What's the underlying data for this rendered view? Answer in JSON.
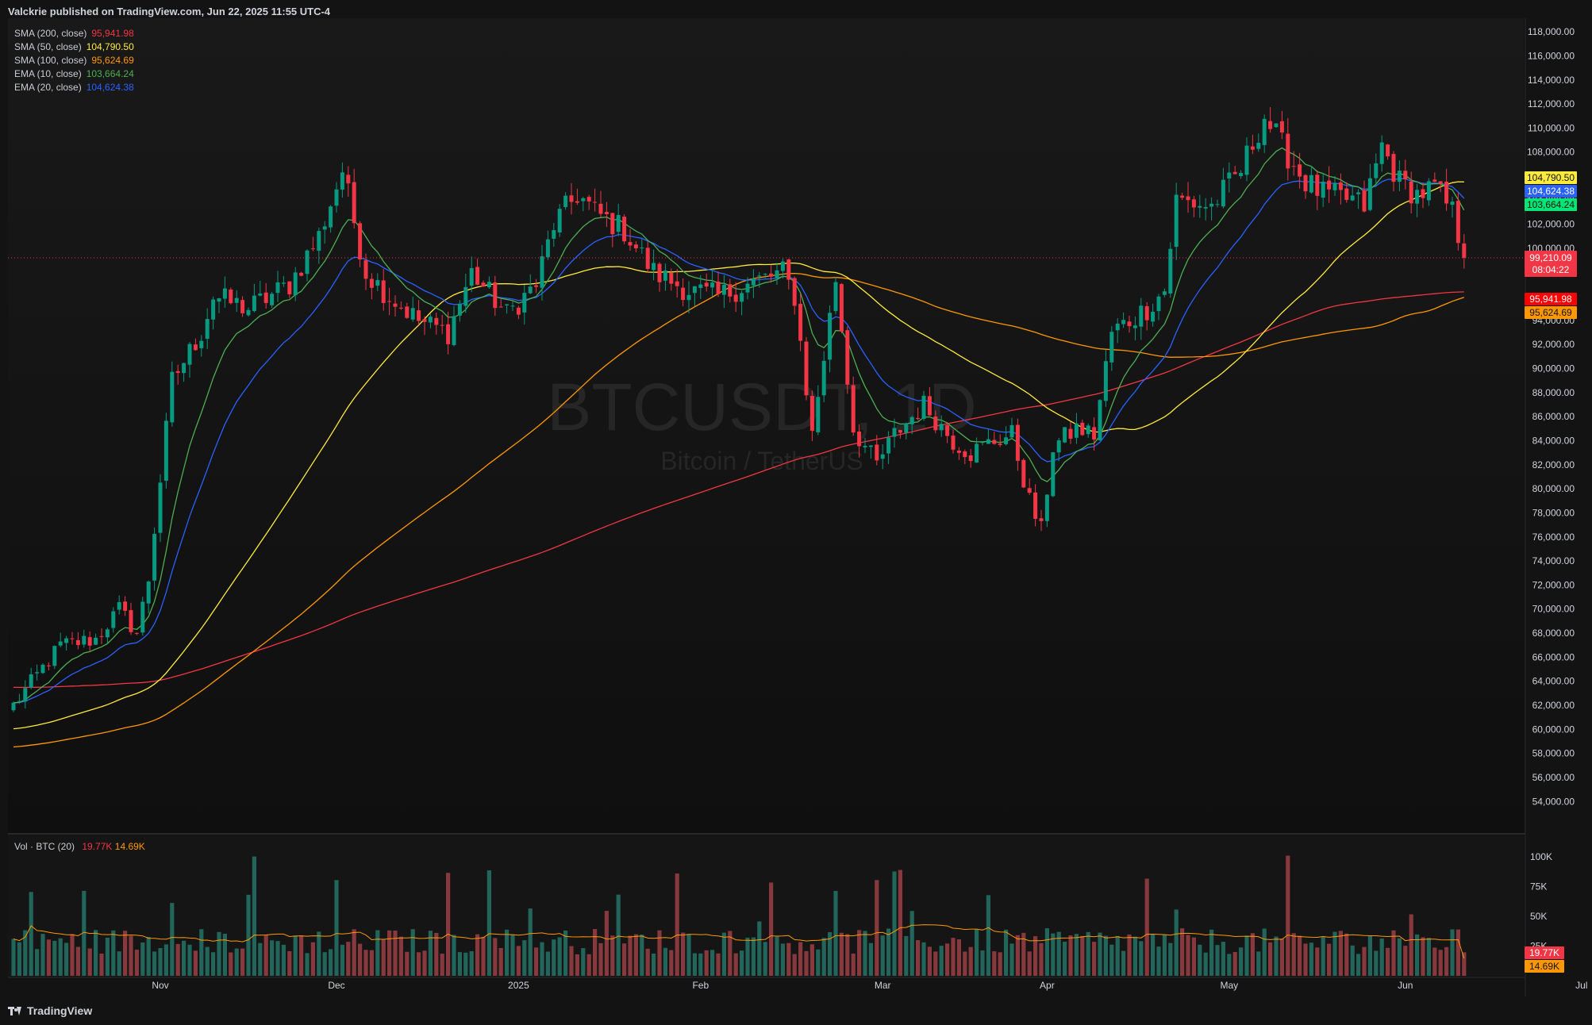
{
  "header": {
    "text": "Valckrie published on TradingView.com, Jun 22, 2025 11:55 UTC-4"
  },
  "watermark": {
    "symbol": "BTCUSDT, 1D",
    "description": "Bitcoin / TetherUS"
  },
  "legend": [
    {
      "name": "SMA (200, close)",
      "value": "95,941.98",
      "color": "#f23645"
    },
    {
      "name": "SMA (50, close)",
      "value": "104,790.50",
      "color": "#ffeb3b"
    },
    {
      "name": "SMA (100, close)",
      "value": "95,624.69",
      "color": "#ff9800"
    },
    {
      "name": "EMA (10, close)",
      "value": "103,664.24",
      "color": "#4caf50"
    },
    {
      "name": "EMA (20, close)",
      "value": "104,624.38",
      "color": "#2962ff"
    }
  ],
  "volume_legend": {
    "name": "Vol · BTC (20)",
    "value1": "19.77K",
    "value2": "14.69K",
    "color1": "#f23645",
    "color2": "#ff9800"
  },
  "footer": {
    "logo_text": "TradingView"
  },
  "price_labels": {
    "sma50": {
      "text": "104,790.50",
      "value": 104790.5,
      "bg": "#ffeb3b",
      "fg": "#131313"
    },
    "ema20": {
      "text": "104,624.38",
      "value": 104624.38,
      "bg": "#2962ff",
      "fg": "#ffffff"
    },
    "ema10": {
      "text": "103,664.24",
      "value": 103664.24,
      "bg": "#00e676",
      "fg": "#131313"
    },
    "last": {
      "text": "99,210.09",
      "countdown": "08:04:22",
      "value": 99210.09,
      "bg": "#f23645",
      "fg": "#ffffff"
    },
    "sma200": {
      "text": "95,941.98",
      "value": 95941.98,
      "bg": "#ff0000",
      "fg": "#ffffff"
    },
    "sma100": {
      "text": "95,624.69",
      "value": 95624.69,
      "bg": "#ff9800",
      "fg": "#131313"
    }
  },
  "volume_labels": {
    "vol": {
      "text": "19.77K",
      "value": 19770,
      "bg": "#f23645",
      "fg": "#ffffff"
    },
    "vol_ma": {
      "text": "14.69K",
      "value": 14690,
      "bg": "#ff9800",
      "fg": "#131313"
    }
  },
  "chart_data": {
    "type": "candlestick",
    "symbol": "BTCUSDT",
    "interval": "1D",
    "price_axis": {
      "ticks": [
        "54,000.00",
        "56,000.00",
        "58,000.00",
        "60,000.00",
        "62,000.00",
        "64,000.00",
        "66,000.00",
        "68,000.00",
        "70,000.00",
        "72,000.00",
        "74,000.00",
        "76,000.00",
        "78,000.00",
        "80,000.00",
        "82,000.00",
        "84,000.00",
        "86,000.00",
        "88,000.00",
        "90,000.00",
        "92,000.00",
        "94,000.00",
        "96,000.00",
        "98,000.00",
        "100,000.00",
        "102,000.00",
        "104,000.00",
        "106,000.00",
        "108,000.00",
        "110,000.00",
        "112,000.00",
        "114,000.00",
        "116,000.00",
        "118,000.00"
      ],
      "range": [
        52500,
        118800
      ]
    },
    "volume_axis": {
      "ticks": [
        "25K",
        "50K",
        "75K",
        "100K"
      ],
      "range": [
        0,
        112000
      ]
    },
    "time_axis": {
      "labels": [
        "Nov",
        "Dec",
        "2025",
        "Feb",
        "Mar",
        "Apr",
        "May",
        "Jun",
        "Jul"
      ]
    },
    "anchors": [
      [
        0,
        62000
      ],
      [
        8,
        67000
      ],
      [
        14,
        67500
      ],
      [
        18,
        70000
      ],
      [
        21,
        68000
      ],
      [
        23,
        72500
      ],
      [
        27,
        89000
      ],
      [
        32,
        93000
      ],
      [
        34,
        96000
      ],
      [
        40,
        95000
      ],
      [
        47,
        97000
      ],
      [
        52,
        101000
      ],
      [
        56,
        106500
      ],
      [
        60,
        98000
      ],
      [
        64,
        96000
      ],
      [
        69,
        94000
      ],
      [
        74,
        93000
      ],
      [
        78,
        98000
      ],
      [
        84,
        94500
      ],
      [
        89,
        97000
      ],
      [
        92,
        102000
      ],
      [
        96,
        104500
      ],
      [
        99,
        103000
      ],
      [
        104,
        101500
      ],
      [
        109,
        98000
      ],
      [
        115,
        96500
      ],
      [
        120,
        96000
      ],
      [
        125,
        97000
      ],
      [
        131,
        98000
      ],
      [
        133,
        96000
      ],
      [
        136,
        84500
      ],
      [
        140,
        97500
      ],
      [
        143,
        85000
      ],
      [
        147,
        82000
      ],
      [
        150,
        84500
      ],
      [
        155,
        87000
      ],
      [
        160,
        84000
      ],
      [
        163,
        83000
      ],
      [
        167,
        84000
      ],
      [
        170,
        84500
      ],
      [
        173,
        79000
      ],
      [
        175,
        76500
      ],
      [
        177,
        83500
      ],
      [
        181,
        85000
      ],
      [
        184,
        84500
      ],
      [
        187,
        93000
      ],
      [
        193,
        95000
      ],
      [
        196,
        96500
      ],
      [
        198,
        104000
      ],
      [
        204,
        103500
      ],
      [
        209,
        106500
      ],
      [
        213,
        111000
      ],
      [
        216,
        108500
      ],
      [
        220,
        105500
      ],
      [
        223,
        104500
      ],
      [
        228,
        104000
      ],
      [
        230,
        103500
      ],
      [
        233,
        108500
      ],
      [
        236,
        105500
      ],
      [
        239,
        104500
      ],
      [
        242,
        105000
      ],
      [
        245,
        103000
      ],
      [
        247,
        99210
      ]
    ]
  }
}
